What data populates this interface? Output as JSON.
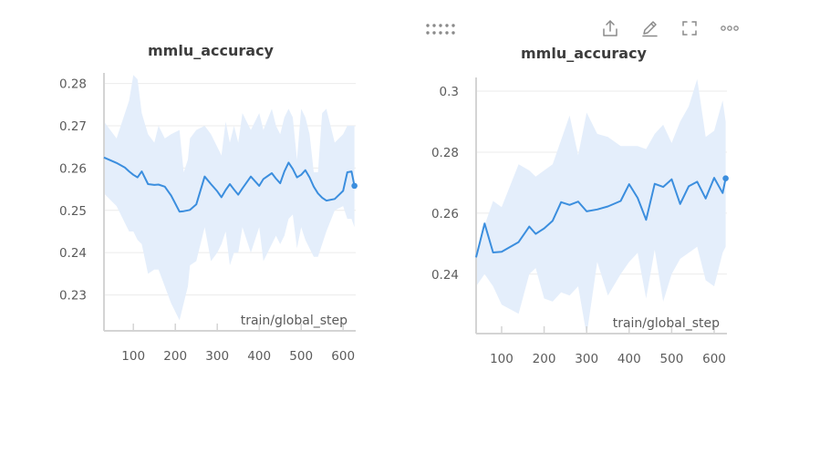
{
  "toolbar": {
    "icons": [
      "drag-handle-icon",
      "share-icon",
      "edit-icon",
      "fullscreen-icon",
      "more-options-icon"
    ]
  },
  "colors": {
    "line": "#3b8ede",
    "band": "#e4eefb",
    "grid": "#ebebeb",
    "axis": "#d4d4d4",
    "tick_text": "#5b5b5b",
    "title_text": "#3d3d3d",
    "icon": "#8a8a8a"
  },
  "chart_data": [
    {
      "type": "line",
      "title": "mmlu_accuracy",
      "xlabel": "train/global_step",
      "ylabel": "",
      "xlim": [
        30,
        630
      ],
      "ylim": [
        0.2215,
        0.2825
      ],
      "xticks": [
        100,
        200,
        300,
        400,
        500,
        600
      ],
      "xtick_labels": [
        "100",
        "200",
        "300",
        "400",
        "500",
        "600"
      ],
      "yticks": [
        0.23,
        0.24,
        0.25,
        0.26,
        0.27,
        0.28
      ],
      "ytick_labels": [
        "0.23",
        "0.24",
        "0.25",
        "0.26",
        "0.27",
        "0.28"
      ],
      "grid": true,
      "x": [
        30,
        60,
        80,
        90,
        100,
        110,
        120,
        135,
        150,
        160,
        175,
        190,
        210,
        220,
        230,
        235,
        250,
        270,
        285,
        300,
        310,
        320,
        330,
        340,
        350,
        360,
        380,
        400,
        410,
        430,
        440,
        450,
        460,
        470,
        480,
        490,
        500,
        510,
        520,
        530,
        540,
        550,
        560,
        580,
        600,
        610,
        620,
        627
      ],
      "values": [
        0.2625,
        0.2612,
        0.2601,
        0.2592,
        0.2584,
        0.2578,
        0.2592,
        0.2562,
        0.256,
        0.2561,
        0.2556,
        0.2535,
        0.2497,
        0.2498,
        0.25,
        0.2501,
        0.2514,
        0.258,
        0.2562,
        0.2545,
        0.2531,
        0.2548,
        0.2562,
        0.2549,
        0.2537,
        0.2552,
        0.258,
        0.2558,
        0.2574,
        0.2588,
        0.2575,
        0.2564,
        0.2592,
        0.2613,
        0.2598,
        0.2578,
        0.2584,
        0.2595,
        0.2578,
        0.2556,
        0.254,
        0.253,
        0.2523,
        0.2527,
        0.2546,
        0.259,
        0.2592,
        0.2558
      ],
      "band_upper": [
        0.271,
        0.267,
        0.273,
        0.276,
        0.282,
        0.281,
        0.273,
        0.268,
        0.266,
        0.27,
        0.267,
        0.268,
        0.269,
        0.259,
        0.262,
        0.267,
        0.269,
        0.27,
        0.268,
        0.265,
        0.263,
        0.271,
        0.266,
        0.27,
        0.266,
        0.273,
        0.269,
        0.273,
        0.269,
        0.274,
        0.27,
        0.268,
        0.272,
        0.274,
        0.272,
        0.262,
        0.274,
        0.272,
        0.268,
        0.259,
        0.259,
        0.273,
        0.274,
        0.266,
        0.268,
        0.27,
        0.27,
        0.27
      ],
      "band_lower": [
        0.254,
        0.251,
        0.247,
        0.245,
        0.245,
        0.243,
        0.242,
        0.235,
        0.236,
        0.236,
        0.232,
        0.228,
        0.224,
        0.228,
        0.232,
        0.237,
        0.238,
        0.246,
        0.238,
        0.24,
        0.242,
        0.245,
        0.237,
        0.24,
        0.24,
        0.246,
        0.24,
        0.246,
        0.238,
        0.242,
        0.244,
        0.242,
        0.244,
        0.248,
        0.249,
        0.241,
        0.246,
        0.243,
        0.241,
        0.239,
        0.239,
        0.242,
        0.245,
        0.25,
        0.251,
        0.248,
        0.248,
        0.246
      ],
      "highlight_point": {
        "x": 627,
        "y": 0.2558
      }
    },
    {
      "type": "line",
      "title": "mmlu_accuracy",
      "xlabel": "train/global_step",
      "ylabel": "",
      "xlim": [
        40,
        630
      ],
      "ylim": [
        0.2205,
        0.3045
      ],
      "xticks": [
        100,
        200,
        300,
        400,
        500,
        600
      ],
      "xtick_labels": [
        "100",
        "200",
        "300",
        "400",
        "500",
        "600"
      ],
      "yticks": [
        0.24,
        0.26,
        0.28,
        0.3
      ],
      "ytick_labels": [
        "0.24",
        "0.26",
        "0.28",
        "0.3"
      ],
      "grid": true,
      "x": [
        40,
        60,
        80,
        100,
        140,
        165,
        180,
        200,
        220,
        240,
        260,
        280,
        300,
        325,
        350,
        380,
        400,
        420,
        440,
        460,
        480,
        500,
        520,
        540,
        560,
        580,
        600,
        620,
        627
      ],
      "values": [
        0.2455,
        0.2566,
        0.2471,
        0.2473,
        0.2505,
        0.2556,
        0.2532,
        0.255,
        0.2575,
        0.2636,
        0.2627,
        0.2638,
        0.2606,
        0.2612,
        0.2622,
        0.264,
        0.2695,
        0.265,
        0.2578,
        0.2696,
        0.2686,
        0.2711,
        0.263,
        0.2688,
        0.2703,
        0.2648,
        0.2716,
        0.2666,
        0.2714
      ],
      "band_upper": [
        0.244,
        0.256,
        0.264,
        0.262,
        0.276,
        0.274,
        0.272,
        0.274,
        0.276,
        0.284,
        0.292,
        0.279,
        0.293,
        0.286,
        0.285,
        0.282,
        0.282,
        0.282,
        0.281,
        0.286,
        0.289,
        0.283,
        0.29,
        0.295,
        0.304,
        0.285,
        0.287,
        0.297,
        0.29
      ],
      "band_lower": [
        0.236,
        0.24,
        0.236,
        0.23,
        0.227,
        0.24,
        0.242,
        0.232,
        0.231,
        0.234,
        0.233,
        0.236,
        0.22,
        0.244,
        0.233,
        0.24,
        0.244,
        0.247,
        0.232,
        0.248,
        0.231,
        0.24,
        0.245,
        0.247,
        0.249,
        0.238,
        0.236,
        0.247,
        0.249
      ],
      "highlight_point": {
        "x": 627,
        "y": 0.2714
      }
    }
  ]
}
